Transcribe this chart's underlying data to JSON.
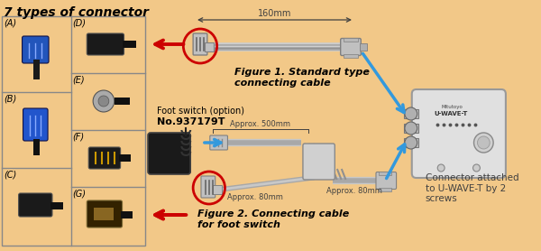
{
  "bg_color": "#f2c888",
  "title": "7 types of connector",
  "title_fontsize": 10,
  "fig1_label": "Figure 1. Standard type\nconnecting cable",
  "fig2_label": "Figure 2. Connecting cable\nfor foot switch",
  "foot_switch_line1": "Foot switch (option)",
  "foot_switch_line2": "No.937179T",
  "dim_160": "160mm",
  "dim_500": "Approx. 500mm",
  "dim_80_1": "Approx. 80mm",
  "dim_80_2": "Approx. 80mm",
  "connector_label": "Connector attached\nto U-WAVE-T by 2\nscrews",
  "arrow_red": "#cc0000",
  "arrow_blue": "#3399dd",
  "text_dark": "#404040",
  "cable_color_outer": "#c8c8c8",
  "cable_color_inner": "#a0a0a0",
  "connector_face": "#c0c0c0",
  "connector_edge": "#808080",
  "device_face": "#e0e0e0",
  "device_edge": "#999999",
  "grid_edge": "#888888",
  "label_fs": 7,
  "fig_fs": 8,
  "note_fs": 7,
  "dim_fs": 6
}
